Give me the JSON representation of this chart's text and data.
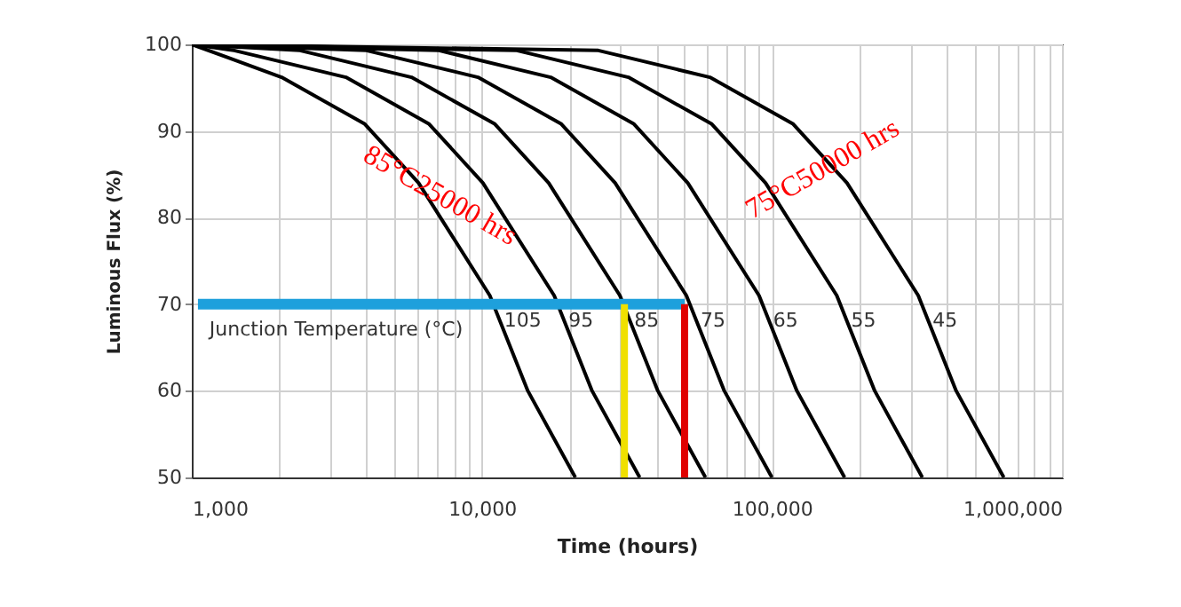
{
  "chart_data": {
    "type": "line",
    "xlabel": "Time (hours)",
    "ylabel": "Luminous Flux (%)",
    "legend_title": "Junction Temperature (°C)",
    "log": "x",
    "grid": true,
    "marker": "none",
    "line_style": "solid",
    "xlim": [
      1000,
      1000000
    ],
    "ylim": [
      50,
      100
    ],
    "xticks": [
      {
        "value": 1000,
        "label": "1,000"
      },
      {
        "value": 2000,
        "label": null
      },
      {
        "value": 3000,
        "label": null
      },
      {
        "value": 4000,
        "label": null
      },
      {
        "value": 5000,
        "label": null
      },
      {
        "value": 6000,
        "label": null
      },
      {
        "value": 7000,
        "label": null
      },
      {
        "value": 8000,
        "label": null
      },
      {
        "value": 9000,
        "label": null
      },
      {
        "value": 10000,
        "label": "10,000"
      },
      {
        "value": 20000,
        "label": null
      },
      {
        "value": 30000,
        "label": null
      },
      {
        "value": 40000,
        "label": null
      },
      {
        "value": 50000,
        "label": null
      },
      {
        "value": 60000,
        "label": null
      },
      {
        "value": 70000,
        "label": null
      },
      {
        "value": 80000,
        "label": null
      },
      {
        "value": 90000,
        "label": null
      },
      {
        "value": 100000,
        "label": "100,000"
      },
      {
        "value": 200000,
        "label": null
      },
      {
        "value": 300000,
        "label": null
      },
      {
        "value": 400000,
        "label": null
      },
      {
        "value": 500000,
        "label": null
      },
      {
        "value": 600000,
        "label": null
      },
      {
        "value": 700000,
        "label": null
      },
      {
        "value": 800000,
        "label": null
      },
      {
        "value": 900000,
        "label": null
      },
      {
        "value": 1000000,
        "label": "1,000,000"
      }
    ],
    "yticks": [
      50,
      60,
      70,
      80,
      90,
      100
    ],
    "series": [
      {
        "name": "105",
        "color": "#000000",
        "x": [
          1000,
          2040,
          3950,
          6050,
          10650,
          14400,
          21000
        ],
        "values": [
          100,
          96.2,
          90.8,
          84.0,
          71.0,
          60.0,
          50
        ]
      },
      {
        "name": "95",
        "color": "#000000",
        "x": [
          1000,
          1400,
          3400,
          6580,
          10080,
          17750,
          23980,
          35000
        ],
        "values": [
          100,
          99.3,
          96.2,
          90.8,
          84.0,
          71.0,
          60.0,
          50
        ]
      },
      {
        "name": "85",
        "color": "#000000",
        "x": [
          1000,
          2360,
          5720,
          11090,
          16990,
          29910,
          40420,
          59000
        ],
        "values": [
          100,
          99.3,
          96.2,
          90.8,
          84.0,
          71.0,
          60.0,
          50
        ]
      },
      {
        "name": "75",
        "color": "#000000",
        "x": [
          1000,
          4000,
          9700,
          18800,
          28800,
          50700,
          68500,
          100000
        ],
        "values": [
          100,
          99.3,
          96.2,
          90.8,
          84.0,
          71.0,
          60.0,
          50
        ]
      },
      {
        "name": "65",
        "color": "#000000",
        "x": [
          1000,
          7120,
          17270,
          33460,
          51260,
          90250,
          121900,
          178000
        ],
        "values": [
          100,
          99.3,
          96.2,
          90.8,
          84.0,
          71.0,
          60.0,
          50
        ]
      },
      {
        "name": "55",
        "color": "#000000",
        "x": [
          1000,
          13200,
          32010,
          62040,
          95040,
          167300,
          226100,
          330000
        ],
        "values": [
          100,
          99.3,
          96.2,
          90.8,
          84.0,
          71.0,
          60.0,
          50
        ]
      },
      {
        "name": "45",
        "color": "#000000",
        "x": [
          1000,
          25200,
          61110,
          118400,
          181400,
          319400,
          431600,
          630000
        ],
        "values": [
          100,
          99.3,
          96.2,
          90.8,
          84.0,
          71.0,
          60.0,
          50
        ]
      }
    ],
    "ref_lines": [
      {
        "axis": "y",
        "value": 70,
        "color": "#1ea0dc"
      },
      {
        "axis": "x",
        "value": 31000,
        "color": "#f0e000"
      },
      {
        "axis": "x",
        "value": 50000,
        "color": "#e00000"
      }
    ],
    "annotations": [
      "85°C25000 hrs",
      "75°C50000 hrs"
    ]
  }
}
